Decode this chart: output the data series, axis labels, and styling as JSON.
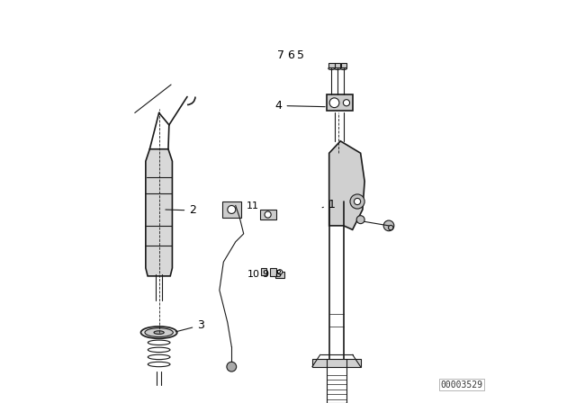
{
  "bg_color": "#ffffff",
  "line_color": "#1a1a1a",
  "label_color": "#000000",
  "part_number": "00003529",
  "fig_width": 6.4,
  "fig_height": 4.48,
  "dpi": 100
}
